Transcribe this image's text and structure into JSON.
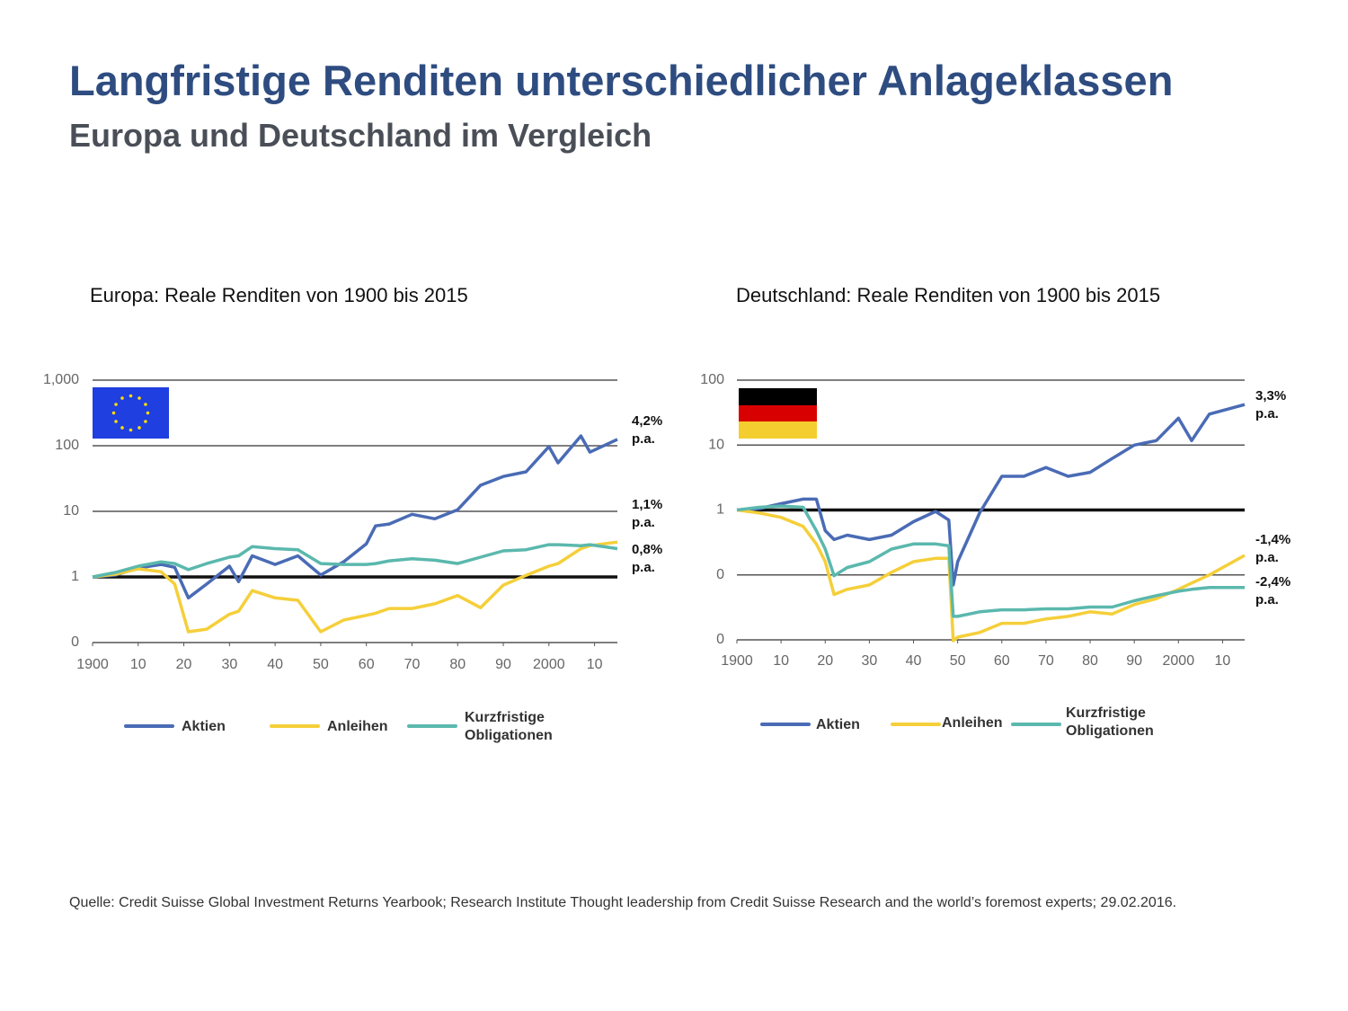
{
  "title": "Langfristige Renditen unterschiedlicher Anlageklassen",
  "subtitle": "Europa und Deutschland im Vergleich",
  "source": "Quelle: Credit Suisse Global Investment Returns Yearbook; Research Institute Thought leadership from Credit Suisse Research and the world’s foremost experts; 29.02.2016.",
  "chart_data": [
    {
      "type": "line",
      "title": "Europa: Reale Renditen von 1900 bis 2015",
      "log_scale": true,
      "grid": true,
      "xlim": [
        1900,
        2015
      ],
      "ylim": [
        0.1,
        1000
      ],
      "xticks": [
        1900,
        {
          "value": 1910,
          "label": "10"
        },
        {
          "value": 1920,
          "label": "20"
        },
        {
          "value": 1930,
          "label": "30"
        },
        {
          "value": 1940,
          "label": "40"
        },
        {
          "value": 1950,
          "label": "50"
        },
        {
          "value": 1960,
          "label": "60"
        },
        {
          "value": 1970,
          "label": "70"
        },
        {
          "value": 1980,
          "label": "80"
        },
        {
          "value": 1990,
          "label": "90"
        },
        2000,
        {
          "value": 2010,
          "label": "10"
        }
      ],
      "yticks": [
        {
          "value": 0.1,
          "label": "0"
        },
        1,
        10,
        100,
        {
          "value": 1000,
          "label": "1,000"
        }
      ],
      "x": [
        1900,
        1905,
        1910,
        1915,
        1918,
        1921,
        1925,
        1930,
        1932,
        1935,
        1940,
        1945,
        1950,
        1955,
        1960,
        1962,
        1965,
        1970,
        1975,
        1980,
        1985,
        1990,
        1995,
        2000,
        2002,
        2007,
        2009,
        2015
      ],
      "series": [
        {
          "name": "Aktien",
          "color": "#4a6bb5",
          "values": [
            1,
            1.07,
            1.37,
            1.55,
            1.4,
            0.48,
            0.78,
            1.46,
            0.85,
            2.1,
            1.55,
            2.1,
            1.07,
            1.7,
            3.2,
            6,
            6.4,
            9,
            7.7,
            10.6,
            25,
            34,
            40,
            97,
            55,
            141,
            80,
            125
          ]
        },
        {
          "name": "Anleihen",
          "color": "#f5cf3a",
          "values": [
            1,
            1.1,
            1.33,
            1.2,
            0.78,
            0.146,
            0.16,
            0.27,
            0.3,
            0.62,
            0.48,
            0.44,
            0.146,
            0.22,
            0.26,
            0.28,
            0.33,
            0.33,
            0.39,
            0.52,
            0.34,
            0.75,
            1.06,
            1.46,
            1.6,
            2.7,
            3,
            3.4
          ]
        },
        {
          "name": "Kurzfristige Obligationen",
          "color": "#5bb8ad",
          "values": [
            1,
            1.17,
            1.46,
            1.7,
            1.6,
            1.29,
            1.6,
            2,
            2.1,
            2.9,
            2.7,
            2.6,
            1.6,
            1.55,
            1.55,
            1.6,
            1.76,
            1.9,
            1.8,
            1.6,
            2,
            2.5,
            2.6,
            3.1,
            3.1,
            3,
            3.1,
            2.7
          ]
        }
      ],
      "annotations": [
        "4,2% p.a.",
        "1,1% p.a.",
        "0,8% p.a."
      ]
    },
    {
      "type": "line",
      "title": "Deutschland: Reale Renditen von 1900 bis 2015",
      "log_scale": true,
      "grid": true,
      "xlim": [
        1900,
        2015
      ],
      "ylim": [
        0.01,
        100
      ],
      "xticks": [
        1900,
        {
          "value": 1910,
          "label": "10"
        },
        {
          "value": 1920,
          "label": "20"
        },
        {
          "value": 1930,
          "label": "30"
        },
        {
          "value": 1940,
          "label": "40"
        },
        {
          "value": 1950,
          "label": "50"
        },
        {
          "value": 1960,
          "label": "60"
        },
        {
          "value": 1970,
          "label": "70"
        },
        {
          "value": 1980,
          "label": "80"
        },
        {
          "value": 1990,
          "label": "90"
        },
        2000,
        {
          "value": 2010,
          "label": "10"
        }
      ],
      "yticks": [
        {
          "value": 0.01,
          "label": "0"
        },
        {
          "value": 0.1,
          "label": "0"
        },
        1,
        10,
        100
      ],
      "x": [
        1900,
        1905,
        1910,
        1915,
        1918,
        1920,
        1922,
        1925,
        1930,
        1935,
        1940,
        1945,
        1948,
        1949,
        1950,
        1955,
        1960,
        1965,
        1970,
        1975,
        1980,
        1985,
        1990,
        1995,
        2000,
        2003,
        2007,
        2015
      ],
      "series": [
        {
          "name": "Aktien",
          "color": "#4a6bb5",
          "values": [
            1,
            1.05,
            1.25,
            1.47,
            1.47,
            0.48,
            0.35,
            0.41,
            0.35,
            0.41,
            0.66,
            0.95,
            0.7,
            0.07,
            0.16,
            0.91,
            3.3,
            3.3,
            4.5,
            3.3,
            3.8,
            6.2,
            10,
            11.7,
            26,
            11.7,
            30,
            42
          ]
        },
        {
          "name": "Anleihen",
          "color": "#f5cf3a",
          "values": [
            1,
            0.9,
            0.77,
            0.56,
            0.3,
            0.16,
            0.05,
            0.06,
            0.07,
            0.11,
            0.16,
            0.18,
            0.18,
            0.0097,
            0.011,
            0.013,
            0.018,
            0.018,
            0.021,
            0.023,
            0.027,
            0.025,
            0.035,
            0.043,
            0.06,
            0.075,
            0.1,
            0.2
          ]
        },
        {
          "name": "Kurzfristige Obligationen",
          "color": "#5bb8ad",
          "values": [
            1,
            1.1,
            1.15,
            1.1,
            0.48,
            0.25,
            0.097,
            0.13,
            0.16,
            0.25,
            0.3,
            0.3,
            0.28,
            0.023,
            0.023,
            0.027,
            0.029,
            0.029,
            0.03,
            0.03,
            0.032,
            0.032,
            0.04,
            0.048,
            0.056,
            0.06,
            0.064,
            0.064
          ]
        }
      ],
      "annotations": [
        "3,3% p.a.",
        "-1,4% p.a.",
        "-2,4% p.a."
      ]
    }
  ]
}
